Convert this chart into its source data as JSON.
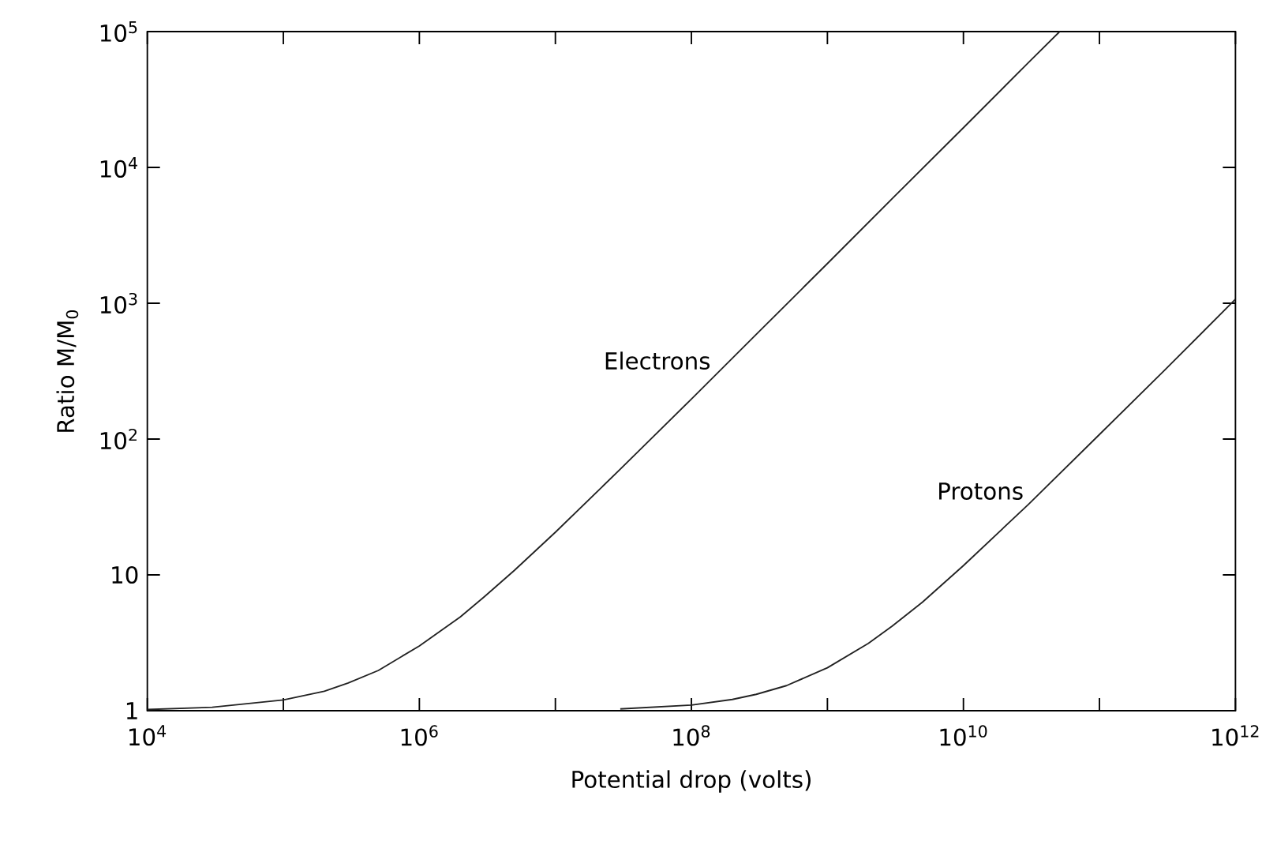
{
  "chart_data": {
    "type": "line",
    "xlabel": "Potential drop (volts)",
    "ylabel": "Ratio M/M$_{0}$",
    "log": "xy",
    "marker": "none",
    "line_style": "solid",
    "xlim": [
      10000,
      1000000000000
    ],
    "ylim": [
      1,
      100000
    ],
    "xticks": [
      {
        "value": 10000,
        "label": "10$^{4}$"
      },
      {
        "value": 100000,
        "label": null
      },
      {
        "value": 1000000,
        "label": "10$^{6}$"
      },
      {
        "value": 10000000,
        "label": null
      },
      {
        "value": 100000000,
        "label": "10$^{8}$"
      },
      {
        "value": 1000000000,
        "label": null
      },
      {
        "value": 10000000000,
        "label": "10$^{10}$"
      },
      {
        "value": 100000000000,
        "label": null
      },
      {
        "value": 1000000000000,
        "label": "10$^{12}$"
      }
    ],
    "yticks": [
      1,
      10,
      {
        "value": 100,
        "label": "10$^{2}$"
      },
      {
        "value": 1000,
        "label": "10$^{3}$"
      },
      {
        "value": 10000,
        "label": "10$^{4}$"
      },
      {
        "value": 100000,
        "label": "10$^{5}$"
      }
    ],
    "series": [
      {
        "color": "#222222",
        "x": [
          10000,
          30000,
          100000,
          200000,
          300000,
          500000,
          1000000,
          2000000,
          3000000,
          5000000,
          10000000,
          30000000,
          100000000,
          300000000,
          1000000000,
          3000000000,
          10000000000,
          30000000000,
          51000000000
        ],
        "values": [
          1.02,
          1.06,
          1.2,
          1.39,
          1.6,
          1.98,
          3,
          4.9,
          6.9,
          10.8,
          20.6,
          60,
          197,
          590,
          1960,
          5900,
          19600,
          59000,
          100000
        ]
      },
      {
        "color": "#222222",
        "x": [
          30000000,
          100000000,
          200000000,
          300000000,
          500000000,
          1000000000,
          2000000000,
          3000000000,
          5000000000,
          10000000000,
          30000000000,
          100000000000,
          300000000000,
          1000000000000
        ],
        "values": [
          1.03,
          1.1,
          1.21,
          1.32,
          1.53,
          2.07,
          3.13,
          4.2,
          6.3,
          11.7,
          33,
          108,
          320,
          1070
        ]
      }
    ],
    "annotations": [
      {
        "text": "Electrons",
        "x": 150000000,
        "y": 300
      },
      {
        "text": "Protons",
        "x": 30000000000,
        "y": 33
      }
    ]
  }
}
